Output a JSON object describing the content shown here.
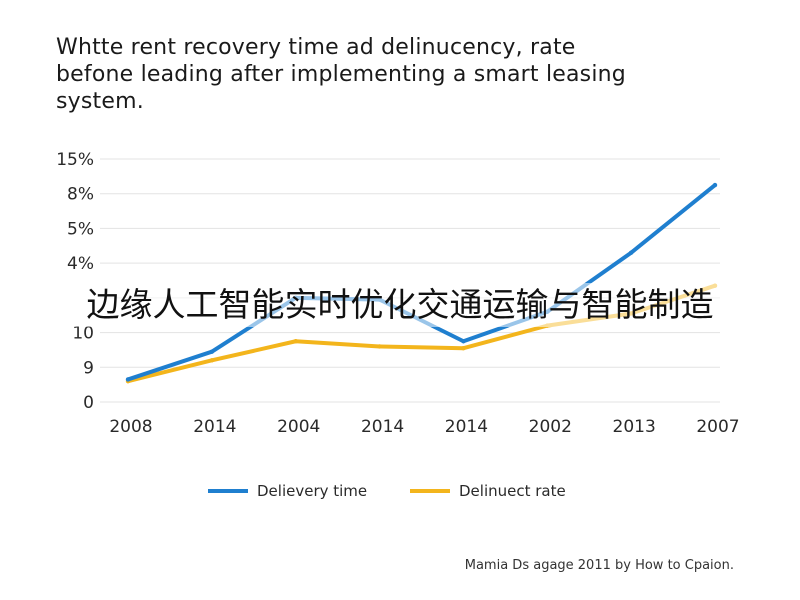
{
  "chart_data": {
    "type": "line",
    "title": "Whtte rent recovery time ad delinucency, rate\nbefone leading after implementing a smart leasing\nsystem.",
    "categories": [
      "2008",
      "2014",
      "2004",
      "2014",
      "2014",
      "2002",
      "2013",
      "2007"
    ],
    "ytick_labels": [
      "0",
      "9",
      "10",
      "",
      "4%",
      "5%",
      "8%",
      "15%"
    ],
    "xlabel": "",
    "ylabel": "",
    "grid": true,
    "legend_position": "bottom",
    "series": [
      {
        "name": "Delievery time",
        "color": "#1f7fcf",
        "values": [
          0.65,
          1.45,
          3.0,
          2.95,
          1.75,
          2.6,
          4.3,
          6.25
        ]
      },
      {
        "name": "Delinuect rate",
        "color": "#f3b51c",
        "values": [
          0.6,
          1.2,
          1.75,
          1.6,
          1.55,
          2.2,
          2.55,
          3.35
        ]
      }
    ]
  },
  "overlay_text": "边缘人工智能实时优化交通运输与智能制造",
  "credit": "Mamia Ds agage 2011 by How to Cpaion."
}
